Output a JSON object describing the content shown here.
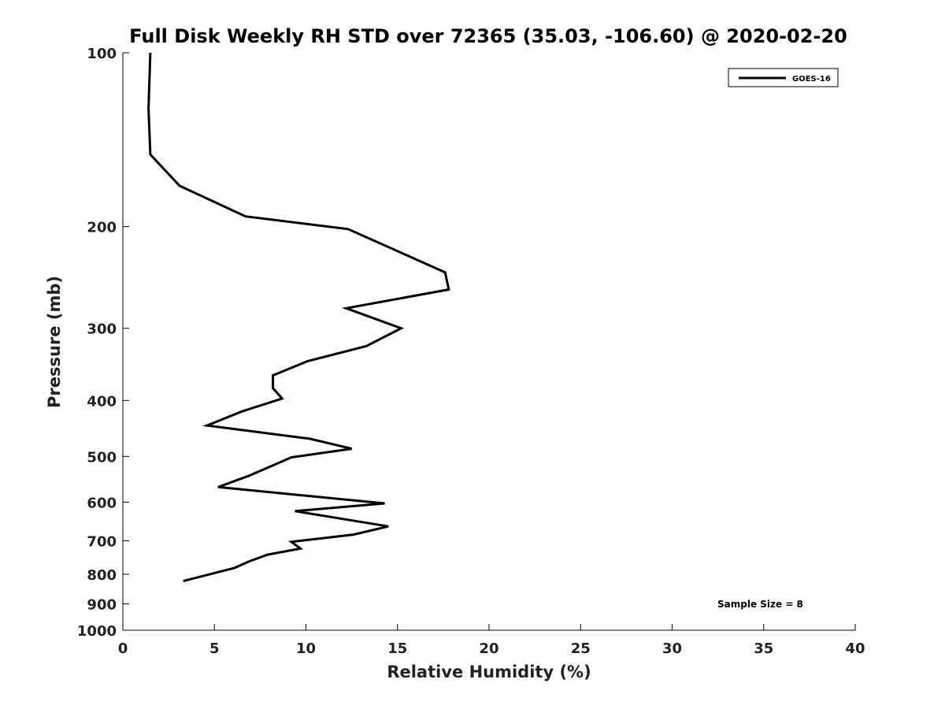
{
  "chart_data": {
    "type": "line",
    "title": "Full Disk Weekly RH STD over 72365 (35.03, -106.60) @ 2020-02-20",
    "xlabel": "Relative Humidity (%)",
    "ylabel": "Pressure (mb)",
    "xlim": [
      0,
      40
    ],
    "ylim": [
      1000,
      100
    ],
    "y_scale": "log",
    "x_ticks": [
      "0",
      "5",
      "10",
      "15",
      "20",
      "25",
      "30",
      "35",
      "40"
    ],
    "y_ticks": [
      "100",
      "200",
      "300",
      "400",
      "500",
      "600",
      "700",
      "800",
      "900",
      "1000"
    ],
    "grid": false,
    "legend_position": "top-right",
    "annotation": "Sample Size = 8",
    "series": [
      {
        "name": "GOES-16",
        "color": "#000000",
        "points": [
          {
            "x": 1.5,
            "y": 100
          },
          {
            "x": 1.4,
            "y": 125
          },
          {
            "x": 1.5,
            "y": 150
          },
          {
            "x": 3.1,
            "y": 170
          },
          {
            "x": 6.7,
            "y": 192
          },
          {
            "x": 12.3,
            "y": 202
          },
          {
            "x": 17.6,
            "y": 240
          },
          {
            "x": 17.8,
            "y": 257
          },
          {
            "x": 12.2,
            "y": 277
          },
          {
            "x": 15.2,
            "y": 300
          },
          {
            "x": 13.3,
            "y": 322
          },
          {
            "x": 10.1,
            "y": 342
          },
          {
            "x": 8.2,
            "y": 362
          },
          {
            "x": 8.2,
            "y": 381
          },
          {
            "x": 8.7,
            "y": 397
          },
          {
            "x": 6.5,
            "y": 418
          },
          {
            "x": 4.6,
            "y": 442
          },
          {
            "x": 10.2,
            "y": 466
          },
          {
            "x": 12.5,
            "y": 485
          },
          {
            "x": 9.2,
            "y": 502
          },
          {
            "x": 8.1,
            "y": 520
          },
          {
            "x": 6.9,
            "y": 540
          },
          {
            "x": 5.2,
            "y": 565
          },
          {
            "x": 14.3,
            "y": 603
          },
          {
            "x": 9.4,
            "y": 622
          },
          {
            "x": 14.5,
            "y": 661
          },
          {
            "x": 12.6,
            "y": 683
          },
          {
            "x": 9.2,
            "y": 703
          },
          {
            "x": 9.7,
            "y": 722
          },
          {
            "x": 7.9,
            "y": 740
          },
          {
            "x": 6.9,
            "y": 760
          },
          {
            "x": 6.1,
            "y": 780
          },
          {
            "x": 3.3,
            "y": 822
          }
        ]
      }
    ]
  }
}
